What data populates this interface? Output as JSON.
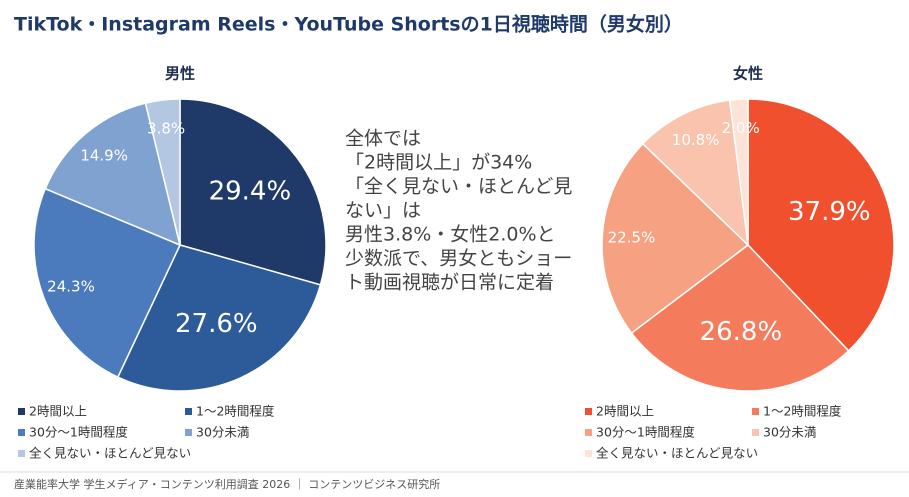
{
  "title": "TikTok・Instagram Reels・YouTube Shortsの1日視聴時間（男女別）",
  "annotation": [
    "全体では",
    "「2時間以上」が34%",
    "「全く見ない・ほとんど見",
    "ない」は",
    "男性3.8%・女性2.0%と",
    "少数派で、男女ともショー",
    "ト動画視聴が日常に定着"
  ],
  "source": "産業能率大学 学生メディア・コンテンツ利用調査 2026 ｜ コンテンツビジネス研究所",
  "chart_data": [
    {
      "type": "pie",
      "title": "男性",
      "categories": [
        "2時間以上",
        "1～2時間程度",
        "30分～1時間程度",
        "30分未満",
        "全く見ない・ほとんど見ない"
      ],
      "values": [
        29.4,
        27.6,
        24.3,
        14.9,
        3.8
      ],
      "value_labels": [
        "29.4%",
        "27.6%",
        "24.3%",
        "14.9%",
        "3.8%"
      ],
      "colors": [
        "#1f3a68",
        "#2d5a98",
        "#4b7bbd",
        "#7fa2d0",
        "#b3c7e3"
      ]
    },
    {
      "type": "pie",
      "title": "女性",
      "categories": [
        "2時間以上",
        "1～2時間程度",
        "30分～1時間程度",
        "30分未満",
        "全く見ない・ほとんど見ない"
      ],
      "values": [
        37.9,
        26.8,
        22.5,
        10.8,
        2.0
      ],
      "value_labels": [
        "37.9%",
        "26.8%",
        "22.5%",
        "10.8%",
        "2.0%"
      ],
      "colors": [
        "#f0502e",
        "#f47c5c",
        "#f7a183",
        "#f9c3ae",
        "#fde2d7"
      ]
    }
  ]
}
